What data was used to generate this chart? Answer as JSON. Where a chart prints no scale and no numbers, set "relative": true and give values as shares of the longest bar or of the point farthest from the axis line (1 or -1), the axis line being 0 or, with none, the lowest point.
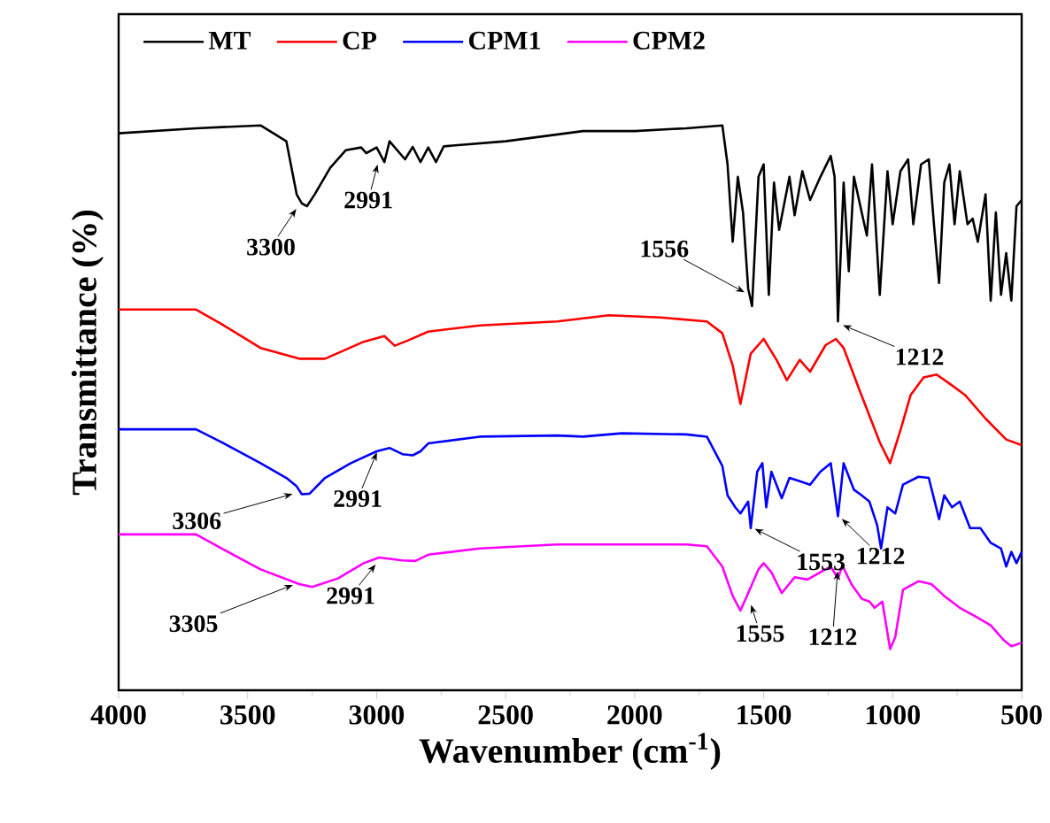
{
  "chart_data": {
    "type": "line",
    "relative": true,
    "xlabel": "Wavenumber (cm$^{-1}$)",
    "ylabel": "Transmittance (%)",
    "xlim": [
      4000,
      500
    ],
    "xticks": [
      4000,
      3500,
      3000,
      2500,
      2000,
      1500,
      1000,
      500
    ],
    "legend": "top left",
    "series": [
      {
        "name": "MT",
        "color": "#000000",
        "x": [
          4000,
          3700,
          3450,
          3350,
          3310,
          3290,
          3270,
          3240,
          3180,
          3120,
          3060,
          3040,
          3000,
          2970,
          2950,
          2920,
          2890,
          2860,
          2830,
          2800,
          2770,
          2740,
          2500,
          2200,
          2000,
          1800,
          1660,
          1640,
          1620,
          1600,
          1580,
          1560,
          1545,
          1520,
          1500,
          1480,
          1460,
          1440,
          1400,
          1380,
          1350,
          1320,
          1280,
          1240,
          1225,
          1212,
          1190,
          1170,
          1150,
          1120,
          1100,
          1080,
          1050,
          1020,
          1000,
          970,
          940,
          920,
          890,
          860,
          840,
          820,
          800,
          780,
          760,
          740,
          710,
          690,
          670,
          640,
          620,
          600,
          580,
          560,
          540,
          520,
          500
        ],
        "values": [
          0.986,
          0.995,
          1.0,
          0.972,
          0.878,
          0.862,
          0.857,
          0.878,
          0.925,
          0.956,
          0.961,
          0.951,
          0.961,
          0.935,
          0.972,
          0.956,
          0.94,
          0.962,
          0.935,
          0.961,
          0.935,
          0.963,
          0.972,
          0.99,
          0.99,
          0.995,
          1.0,
          0.931,
          0.794,
          0.909,
          0.846,
          0.711,
          0.68,
          0.909,
          0.931,
          0.7,
          0.899,
          0.815,
          0.909,
          0.841,
          0.919,
          0.868,
          0.909,
          0.946,
          0.909,
          0.653,
          0.899,
          0.742,
          0.909,
          0.846,
          0.805,
          0.931,
          0.7,
          0.919,
          0.825,
          0.919,
          0.94,
          0.825,
          0.931,
          0.94,
          0.825,
          0.721,
          0.899,
          0.931,
          0.825,
          0.919,
          0.825,
          0.835,
          0.794,
          0.878,
          0.69,
          0.846,
          0.7,
          0.774,
          0.69,
          0.857,
          0.868
        ]
      },
      {
        "name": "CP",
        "color": "#ff0000",
        "x": [
          4000,
          3700,
          3600,
          3450,
          3300,
          3200,
          3050,
          2970,
          2930,
          2880,
          2800,
          2600,
          2300,
          2100,
          1900,
          1720,
          1660,
          1620,
          1590,
          1550,
          1500,
          1450,
          1410,
          1360,
          1320,
          1260,
          1220,
          1190,
          1130,
          1050,
          1010,
          970,
          930,
          880,
          830,
          780,
          720,
          640,
          560,
          500
        ],
        "values": [
          0.674,
          0.674,
          0.648,
          0.606,
          0.587,
          0.587,
          0.617,
          0.627,
          0.61,
          0.619,
          0.635,
          0.646,
          0.653,
          0.664,
          0.66,
          0.653,
          0.632,
          0.575,
          0.507,
          0.596,
          0.622,
          0.585,
          0.549,
          0.585,
          0.564,
          0.611,
          0.622,
          0.606,
          0.533,
          0.439,
          0.402,
          0.46,
          0.523,
          0.554,
          0.559,
          0.543,
          0.523,
          0.481,
          0.444,
          0.434
        ]
      },
      {
        "name": "CPM1",
        "color": "#0000ff",
        "x": [
          4000,
          3700,
          3600,
          3450,
          3350,
          3310,
          3290,
          3260,
          3200,
          3100,
          3000,
          2950,
          2900,
          2860,
          2830,
          2800,
          2600,
          2300,
          2200,
          2050,
          1800,
          1720,
          1660,
          1640,
          1610,
          1590,
          1560,
          1550,
          1525,
          1505,
          1490,
          1470,
          1430,
          1400,
          1360,
          1320,
          1280,
          1240,
          1212,
          1190,
          1150,
          1120,
          1090,
          1060,
          1045,
          1020,
          990,
          960,
          900,
          860,
          820,
          800,
          770,
          740,
          700,
          660,
          620,
          580,
          560,
          540,
          520,
          500
        ],
        "values": [
          0.462,
          0.462,
          0.439,
          0.402,
          0.376,
          0.361,
          0.347,
          0.348,
          0.376,
          0.402,
          0.423,
          0.429,
          0.418,
          0.416,
          0.423,
          0.437,
          0.449,
          0.451,
          0.449,
          0.455,
          0.453,
          0.449,
          0.397,
          0.345,
          0.324,
          0.313,
          0.334,
          0.287,
          0.387,
          0.402,
          0.324,
          0.387,
          0.34,
          0.376,
          0.37,
          0.364,
          0.387,
          0.402,
          0.308,
          0.402,
          0.355,
          0.345,
          0.334,
          0.292,
          0.251,
          0.324,
          0.313,
          0.364,
          0.378,
          0.376,
          0.303,
          0.345,
          0.324,
          0.334,
          0.287,
          0.287,
          0.261,
          0.251,
          0.219,
          0.245,
          0.225,
          0.245
        ]
      },
      {
        "name": "CPM2",
        "color": "#ff00ff",
        "x": [
          4000,
          3700,
          3600,
          3450,
          3300,
          3250,
          3150,
          3050,
          2990,
          2900,
          2850,
          2800,
          2600,
          2300,
          2200,
          1800,
          1720,
          1660,
          1620,
          1590,
          1560,
          1520,
          1500,
          1470,
          1430,
          1380,
          1330,
          1280,
          1240,
          1212,
          1195,
          1160,
          1120,
          1090,
          1070,
          1040,
          1010,
          990,
          960,
          900,
          850,
          800,
          740,
          680,
          620,
          570,
          540,
          500
        ],
        "values": [
          0.276,
          0.276,
          0.251,
          0.214,
          0.188,
          0.183,
          0.198,
          0.225,
          0.235,
          0.23,
          0.229,
          0.24,
          0.251,
          0.258,
          0.258,
          0.258,
          0.255,
          0.219,
          0.167,
          0.141,
          0.172,
          0.214,
          0.225,
          0.209,
          0.172,
          0.2,
          0.196,
          0.209,
          0.219,
          0.198,
          0.221,
          0.188,
          0.162,
          0.157,
          0.146,
          0.157,
          0.073,
          0.094,
          0.178,
          0.193,
          0.188,
          0.167,
          0.146,
          0.131,
          0.115,
          0.089,
          0.078,
          0.084
        ]
      }
    ],
    "annotations": [
      {
        "text": "3300",
        "x": 3300,
        "y": 0.86
      },
      {
        "text": "2991",
        "x": 2991,
        "y": 0.94
      },
      {
        "text": "1556",
        "x": 1556,
        "y": 0.7
      },
      {
        "text": "1212",
        "x": 1212,
        "y": 0.65
      },
      {
        "text": "3306",
        "x": 3306,
        "y": 0.35
      },
      {
        "text": "2991",
        "x": 2991,
        "y": 0.43
      },
      {
        "text": "1553",
        "x": 1553,
        "y": 0.29
      },
      {
        "text": "1212",
        "x": 1212,
        "y": 0.31
      },
      {
        "text": "3305",
        "x": 3305,
        "y": 0.19
      },
      {
        "text": "2991",
        "x": 2991,
        "y": 0.23
      },
      {
        "text": "1555",
        "x": 1555,
        "y": 0.16
      },
      {
        "text": "1212",
        "x": 1212,
        "y": 0.22
      }
    ]
  }
}
